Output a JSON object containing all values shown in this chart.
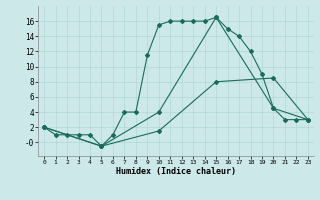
{
  "xlabel": "Humidex (Indice chaleur)",
  "background_color": "#cce8e8",
  "line_color": "#1a6b5a",
  "xlim": [
    -0.5,
    23.5
  ],
  "ylim": [
    -1.8,
    18.0
  ],
  "xticks": [
    0,
    1,
    2,
    3,
    4,
    5,
    6,
    7,
    8,
    9,
    10,
    11,
    12,
    13,
    14,
    15,
    16,
    17,
    18,
    19,
    20,
    21,
    22,
    23
  ],
  "yticks": [
    0,
    2,
    4,
    6,
    8,
    10,
    12,
    14,
    16
  ],
  "ytick_labels": [
    "-0",
    "2",
    "4",
    "6",
    "8",
    "10",
    "12",
    "14",
    "16"
  ],
  "line1_x": [
    0,
    1,
    2,
    3,
    4,
    5,
    6,
    7,
    8,
    9,
    10,
    11,
    12,
    13,
    14,
    15,
    16,
    17,
    18,
    19,
    20,
    21,
    22,
    23
  ],
  "line1_y": [
    2,
    1,
    1,
    1,
    1,
    -0.5,
    1,
    4,
    4,
    11.5,
    15.5,
    16,
    16,
    16,
    16,
    16.5,
    15,
    14,
    12,
    9,
    4.5,
    3,
    3,
    3
  ],
  "line2_x": [
    0,
    5,
    10,
    15,
    20,
    23
  ],
  "line2_y": [
    2,
    -0.5,
    4,
    16.5,
    4.5,
    3
  ],
  "line3_x": [
    0,
    5,
    10,
    15,
    20,
    23
  ],
  "line3_y": [
    2,
    -0.5,
    1.5,
    8,
    8.5,
    3
  ],
  "figsize": [
    3.2,
    2.0
  ],
  "dpi": 100
}
